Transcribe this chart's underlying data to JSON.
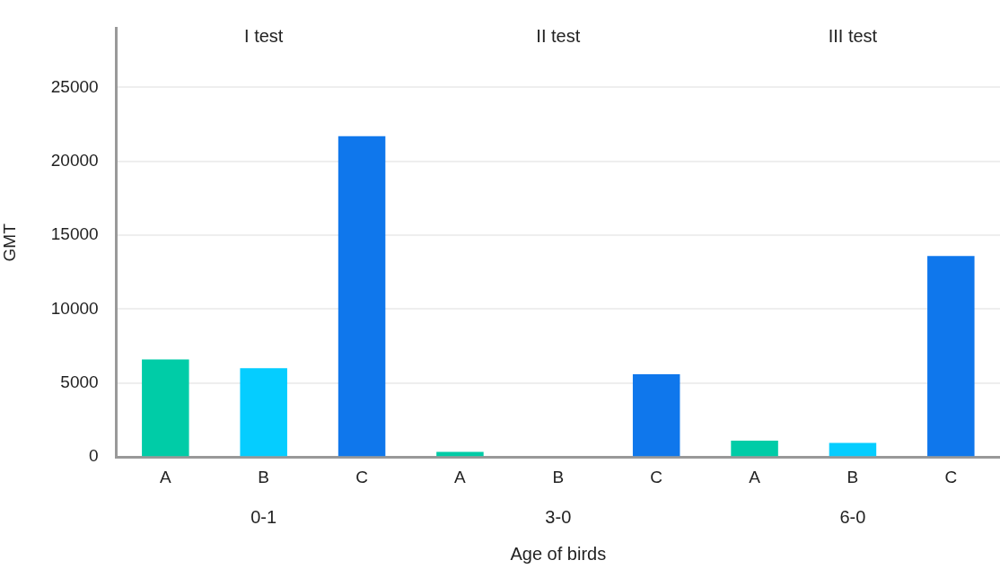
{
  "chart_data": {
    "type": "bar",
    "xlabel": "Age of birds",
    "ylabel": "GMT",
    "categories": [
      "A",
      "B",
      "C",
      "A",
      "B",
      "C",
      "A",
      "B",
      "C"
    ],
    "values": [
      6600,
      6000,
      21700,
      350,
      0,
      5600,
      1100,
      950,
      13600
    ],
    "colors": [
      "#00cca7",
      "#05cdff",
      "#0f77ec",
      "#00cca7",
      "#05cdff",
      "#0f77ec",
      "#00cca7",
      "#05cdff",
      "#0f77ec"
    ],
    "ylim": [
      0,
      29000
    ],
    "yticks": [
      0,
      5000,
      10000,
      15000,
      20000,
      25000
    ],
    "grid": "y",
    "legend": false,
    "annotations": [
      "I test",
      "II test",
      "III test",
      "0-1",
      "3-0",
      "6-0"
    ]
  }
}
